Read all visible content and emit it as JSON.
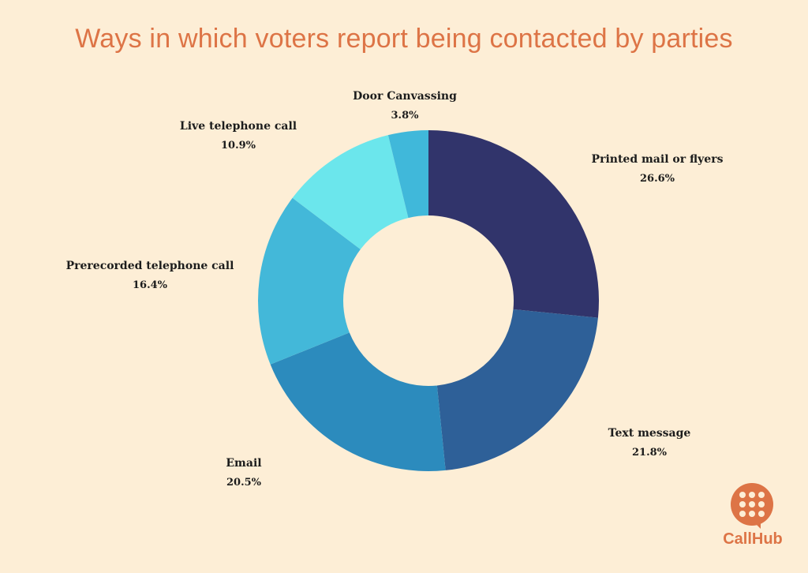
{
  "chart_data": {
    "type": "pie",
    "title": "Ways in which voters report being contacted by parties",
    "slices": [
      {
        "label": "Printed mail or flyers",
        "value": 26.6,
        "display": "26.6%",
        "color": "#31346b"
      },
      {
        "label": "Text message",
        "value": 21.8,
        "display": "21.8%",
        "color": "#2e6098"
      },
      {
        "label": "Email",
        "value": 20.5,
        "display": "20.5%",
        "color": "#2c8bbd"
      },
      {
        "label": "Prerecorded telephone call",
        "value": 16.4,
        "display": "16.4%",
        "color": "#43b8d9"
      },
      {
        "label": "Live telephone call",
        "value": 10.9,
        "display": "10.9%",
        "color": "#6be6ec"
      },
      {
        "label": "Door Canvassing",
        "value": 3.8,
        "display": "3.8%",
        "color": "#40b8da"
      }
    ],
    "donut": true,
    "legend": "none",
    "labels": "outside"
  },
  "logo": {
    "text": "CallHub",
    "color": "#dd7446",
    "icon": "chat-bubble-dots-icon"
  },
  "colors": {
    "background": "#fdeed6",
    "title": "#dd7446"
  }
}
